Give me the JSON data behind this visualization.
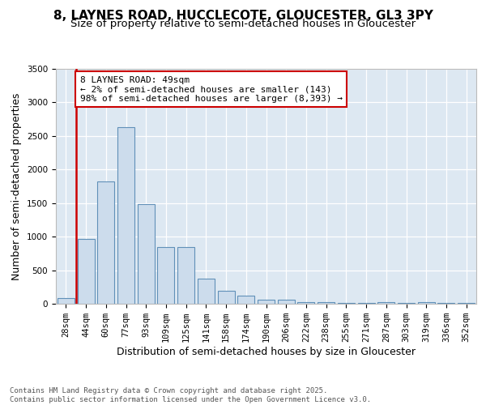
{
  "title1": "8, LAYNES ROAD, HUCCLECOTE, GLOUCESTER, GL3 3PY",
  "title2": "Size of property relative to semi-detached houses in Gloucester",
  "xlabel": "Distribution of semi-detached houses by size in Gloucester",
  "ylabel": "Number of semi-detached properties",
  "categories": [
    "28sqm",
    "44sqm",
    "60sqm",
    "77sqm",
    "93sqm",
    "109sqm",
    "125sqm",
    "141sqm",
    "158sqm",
    "174sqm",
    "190sqm",
    "206sqm",
    "222sqm",
    "238sqm",
    "255sqm",
    "271sqm",
    "287sqm",
    "303sqm",
    "319sqm",
    "336sqm",
    "352sqm"
  ],
  "values": [
    90,
    960,
    1820,
    2630,
    1480,
    840,
    840,
    380,
    190,
    115,
    60,
    55,
    30,
    30,
    10,
    10,
    30,
    10,
    30,
    10,
    10
  ],
  "bar_color": "#ccdcec",
  "bar_edge_color": "#6090b8",
  "vline_index": 1,
  "vline_color": "#cc0000",
  "annotation_text": "8 LAYNES ROAD: 49sqm\n← 2% of semi-detached houses are smaller (143)\n98% of semi-detached houses are larger (8,393) →",
  "annotation_box_facecolor": "#ffffff",
  "annotation_box_edgecolor": "#cc0000",
  "ylim": [
    0,
    3500
  ],
  "yticks": [
    0,
    500,
    1000,
    1500,
    2000,
    2500,
    3000,
    3500
  ],
  "bg_color": "#dde8f2",
  "footer_text": "Contains HM Land Registry data © Crown copyright and database right 2025.\nContains public sector information licensed under the Open Government Licence v3.0.",
  "title1_fontsize": 11,
  "title2_fontsize": 9.5,
  "ylabel_fontsize": 9,
  "xlabel_fontsize": 9,
  "tick_fontsize": 7.5,
  "annotation_fontsize": 8,
  "footer_fontsize": 6.5
}
